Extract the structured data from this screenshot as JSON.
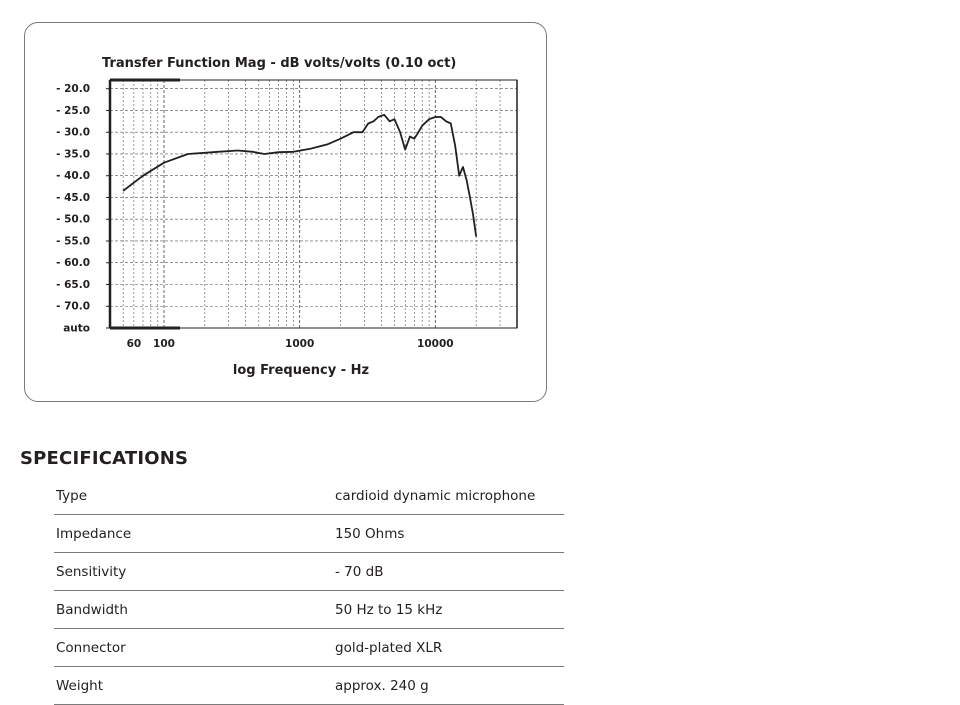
{
  "chart_data": {
    "type": "line",
    "title": "Transfer Function Mag - dB volts/volts (0.10 oct)",
    "xlabel": "log Frequency - Hz",
    "ylabel": "",
    "x_scale": "log",
    "y_tick_labels": [
      "- 20.0",
      "- 25.0",
      "- 30.0",
      "- 35.0",
      "- 40.0",
      "- 45.0",
      "- 50.0",
      "- 55.0",
      "- 60.0",
      "- 65.0",
      "- 70.0",
      "auto"
    ],
    "y_tick_values": [
      -20,
      -25,
      -30,
      -35,
      -40,
      -45,
      -50,
      -55,
      -60,
      -65,
      -70,
      -75
    ],
    "ylim": [
      -75,
      -18
    ],
    "x_tick_labels": [
      "60",
      "100",
      "1000",
      "10000"
    ],
    "x_tick_values": [
      60,
      100,
      1000,
      10000
    ],
    "xlim": [
      40,
      40000
    ],
    "grid": true,
    "series": [
      {
        "x": [
          50,
          70,
          100,
          150,
          250,
          350,
          450,
          550,
          700,
          900,
          1200,
          1600,
          2000,
          2500,
          2900,
          3200,
          3500,
          3800,
          4200,
          4600,
          5000,
          5500,
          6000,
          6500,
          7000,
          7500,
          8000,
          9000,
          10000,
          11000,
          12000,
          13000,
          14000,
          15000,
          16000,
          17000,
          18000,
          19000,
          20000
        ],
        "y": [
          -43.5,
          -40,
          -37,
          -35,
          -34.5,
          -34.2,
          -34.5,
          -35,
          -34.6,
          -34.5,
          -33.8,
          -32.8,
          -31.5,
          -30,
          -30,
          -28,
          -27.5,
          -26.5,
          -26,
          -27.5,
          -27,
          -30,
          -34,
          -31,
          -31.5,
          -30,
          -28.5,
          -27,
          -26.5,
          -26.5,
          -27.5,
          -28,
          -33,
          -40,
          -38,
          -41,
          -45,
          -49,
          -54
        ]
      }
    ]
  },
  "specifications": {
    "heading": "SPECIFICATIONS",
    "rows": [
      {
        "label": "Type",
        "value": "cardioid dynamic microphone"
      },
      {
        "label": "Impedance",
        "value": "150 Ohms"
      },
      {
        "label": "Sensitivity",
        "value": "- 70 dB"
      },
      {
        "label": "Bandwidth",
        "value": "50 Hz to 15 kHz"
      },
      {
        "label": "Connector",
        "value": "gold-plated XLR"
      },
      {
        "label": "Weight",
        "value": "approx. 240 g"
      }
    ]
  }
}
